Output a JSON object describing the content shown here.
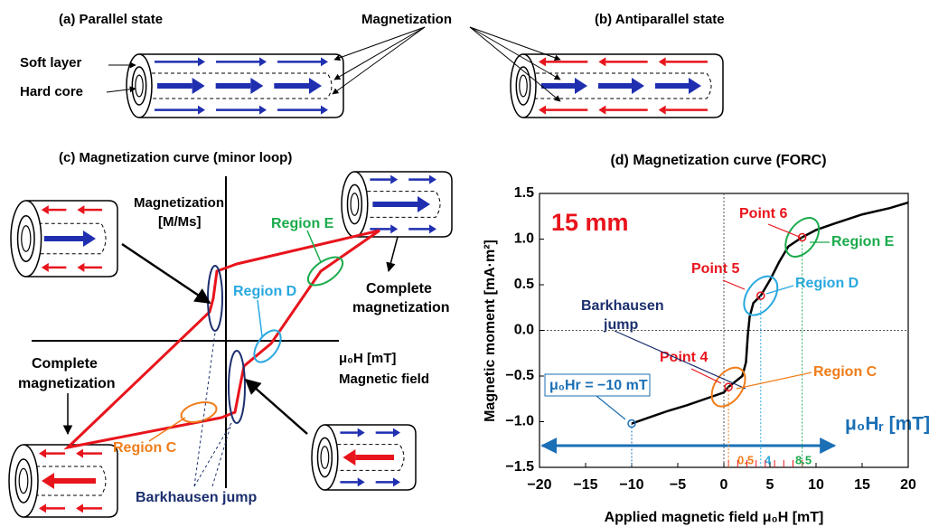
{
  "panels": {
    "a": {
      "title": "(a) Parallel state",
      "soft": "Soft layer",
      "hard": "Hard core"
    },
    "magnetization": "Magnetization",
    "b": {
      "title": "(b) Antiparallel state"
    },
    "c": {
      "title": "(c) Magnetization curve (minor loop)",
      "y_label": [
        "Magnetization",
        "[M/Ms]"
      ],
      "x_label": [
        "μ₀H [mT]",
        "Magnetic field"
      ],
      "region_e": "Region E",
      "region_d": "Region D",
      "region_c": "Region C",
      "complete_right": [
        "Complete",
        "magnetization"
      ],
      "complete_left": [
        "Complete",
        "magnetization"
      ],
      "barkhausen": "Barkhausen jump"
    }
  },
  "chart_data": {
    "type": "line",
    "title": "(d) Magnetization curve (FORC)",
    "x_label": "Applied magnetic field μ₀H [mT]",
    "y_label": "Magnetic moment [mA·m²]",
    "x": [
      -10,
      -8,
      -6,
      -4,
      -2,
      0,
      0.5,
      1,
      2,
      2.4,
      2.6,
      2.8,
      3.2,
      4,
      5,
      6,
      7,
      8.5,
      10,
      12,
      15,
      18,
      20
    ],
    "values": [
      -1.02,
      -0.95,
      -0.88,
      -0.82,
      -0.75,
      -0.68,
      -0.62,
      -0.58,
      -0.5,
      -0.35,
      -0.05,
      0.15,
      0.3,
      0.38,
      0.55,
      0.75,
      0.92,
      1.02,
      1.1,
      1.17,
      1.27,
      1.34,
      1.4
    ],
    "color": "#000000",
    "markers": [
      {
        "x": -10,
        "y": -1.02,
        "color": "#1a6fb5"
      },
      {
        "x": 0.5,
        "y": -0.62,
        "color": "#e8141c"
      },
      {
        "x": 4,
        "y": 0.38,
        "color": "#e8141c"
      },
      {
        "x": 8.5,
        "y": 1.02,
        "color": "#e8141c"
      }
    ],
    "xlim": [
      -20,
      20
    ],
    "xticks": [
      {
        "value": -20,
        "label": "−20"
      },
      {
        "value": -15,
        "label": "−15"
      },
      {
        "value": -10,
        "label": "−10"
      },
      {
        "value": -5,
        "label": "−5"
      },
      0,
      5,
      10,
      15,
      20
    ],
    "ylim": [
      -1.5,
      1.5
    ],
    "yticks": [
      {
        "value": -1.5,
        "label": "−1.5"
      },
      {
        "value": -1,
        "label": "−1.0"
      },
      {
        "value": -0.5,
        "label": "−0.5"
      },
      {
        "value": 0,
        "label": "0.0"
      },
      {
        "value": 0.5,
        "label": "0.5"
      },
      {
        "value": 1,
        "label": "1.0"
      },
      {
        "value": 1.5,
        "label": "1.5"
      }
    ],
    "annotations": [
      "15 mm",
      "Point 6",
      "Region E",
      "Point 5",
      "Region D",
      "Barkhausen",
      "jump",
      "Point 4",
      "Region C",
      "μ₀Hr = −10 mT",
      "μ₀Hᵣ [mT]",
      "0.5",
      "4",
      "8.5"
    ]
  }
}
